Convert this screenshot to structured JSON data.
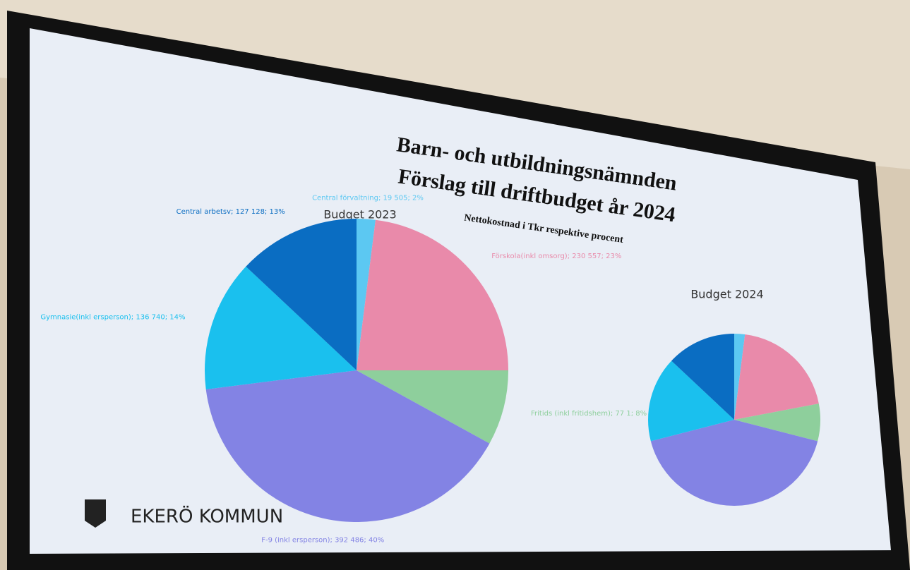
{
  "slide": {
    "title_1": "Barn- och utbildningsnämnden",
    "title_2": "Förslag till driftbudget år 2024",
    "subtitle": "Nettokostnad i Tkr respektive procent",
    "logo": "EKERÖ KOMMUN"
  },
  "chart_data": [
    {
      "type": "pie",
      "title": "Budget 2023",
      "values": [
        2,
        23,
        8,
        40,
        14,
        13
      ],
      "value_labels": [
        "Central förvaltning; 19 505; 2%",
        "Förskola(inkl omsorg); 230 557; 23%",
        "Fritids (inkl fritidshem); 77 1; 8%",
        "F-9 (inkl ersperson); 392 486; 40%",
        "Gymnasie(inkl ersperson); 136 740; 14%",
        "Central arbetsv; 127 128; 13%"
      ],
      "colors": [
        "#5cc8f2",
        "#e98aaa",
        "#8ecf9c",
        "#8383e4",
        "#1ac0ee",
        "#0a6dc2"
      ]
    },
    {
      "type": "pie",
      "title": "Budget 2024",
      "values": [
        2,
        20,
        7,
        42,
        16,
        13
      ],
      "colors": [
        "#5cc8f2",
        "#e98aaa",
        "#8ecf9c",
        "#8383e4",
        "#1ac0ee",
        "#0a6dc2"
      ]
    }
  ]
}
